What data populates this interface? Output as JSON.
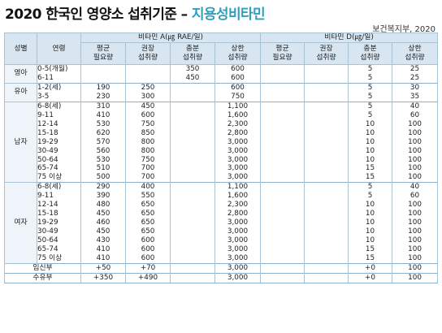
{
  "title": {
    "main": "2020 한국인 영양소 섭취기준",
    "sep": "–",
    "accent": "지용성비타민"
  },
  "source": "보건복지부, 2020",
  "headers": {
    "sex": "성별",
    "age": "연령",
    "vitA": "비타민 A(㎍ RAE/일)",
    "vitD": "비타민 D(㎍/일)",
    "cols": [
      [
        "평균",
        "필요량"
      ],
      [
        "권장",
        "섭취량"
      ],
      [
        "충분",
        "섭취량"
      ],
      [
        "상한",
        "섭취량"
      ],
      [
        "평균",
        "필요량"
      ],
      [
        "권장",
        "섭취량"
      ],
      [
        "충분",
        "섭취량"
      ],
      [
        "상한",
        "섭취량"
      ]
    ]
  },
  "groups": [
    {
      "label": "영아",
      "rows": [
        {
          "age": "0-5(개월)",
          "v": [
            "",
            "",
            "350",
            "600",
            "",
            "",
            "5",
            "25"
          ]
        },
        {
          "age": "6-11",
          "v": [
            "",
            "",
            "450",
            "600",
            "",
            "",
            "5",
            "25"
          ]
        }
      ]
    },
    {
      "label": "유아",
      "rows": [
        {
          "age": "1-2(세)",
          "v": [
            "190",
            "250",
            "",
            "600",
            "",
            "",
            "5",
            "30"
          ]
        },
        {
          "age": "3-5",
          "v": [
            "230",
            "300",
            "",
            "750",
            "",
            "",
            "5",
            "35"
          ]
        }
      ]
    },
    {
      "label": "남자",
      "rows": [
        {
          "age": "6-8(세)",
          "v": [
            "310",
            "450",
            "",
            "1,100",
            "",
            "",
            "5",
            "40"
          ]
        },
        {
          "age": "9-11",
          "v": [
            "410",
            "600",
            "",
            "1,600",
            "",
            "",
            "5",
            "60"
          ]
        },
        {
          "age": "12-14",
          "v": [
            "530",
            "750",
            "",
            "2,300",
            "",
            "",
            "10",
            "100"
          ]
        },
        {
          "age": "15-18",
          "v": [
            "620",
            "850",
            "",
            "2,800",
            "",
            "",
            "10",
            "100"
          ]
        },
        {
          "age": "19-29",
          "v": [
            "570",
            "800",
            "",
            "3,000",
            "",
            "",
            "10",
            "100"
          ]
        },
        {
          "age": "30-49",
          "v": [
            "560",
            "800",
            "",
            "3,000",
            "",
            "",
            "10",
            "100"
          ]
        },
        {
          "age": "50-64",
          "v": [
            "530",
            "750",
            "",
            "3,000",
            "",
            "",
            "10",
            "100"
          ]
        },
        {
          "age": "65-74",
          "v": [
            "510",
            "700",
            "",
            "3,000",
            "",
            "",
            "15",
            "100"
          ]
        },
        {
          "age": "75 이상",
          "v": [
            "500",
            "700",
            "",
            "3,000",
            "",
            "",
            "15",
            "100"
          ]
        }
      ]
    },
    {
      "label": "여자",
      "rows": [
        {
          "age": "6-8(세)",
          "v": [
            "290",
            "400",
            "",
            "1,100",
            "",
            "",
            "5",
            "40"
          ]
        },
        {
          "age": "9-11",
          "v": [
            "390",
            "550",
            "",
            "1,600",
            "",
            "",
            "5",
            "60"
          ]
        },
        {
          "age": "12-14",
          "v": [
            "480",
            "650",
            "",
            "2,300",
            "",
            "",
            "10",
            "100"
          ]
        },
        {
          "age": "15-18",
          "v": [
            "450",
            "650",
            "",
            "2,800",
            "",
            "",
            "10",
            "100"
          ]
        },
        {
          "age": "19-29",
          "v": [
            "460",
            "650",
            "",
            "3,000",
            "",
            "",
            "10",
            "100"
          ]
        },
        {
          "age": "30-49",
          "v": [
            "450",
            "650",
            "",
            "3,000",
            "",
            "",
            "10",
            "100"
          ]
        },
        {
          "age": "50-64",
          "v": [
            "430",
            "600",
            "",
            "3,000",
            "",
            "",
            "10",
            "100"
          ]
        },
        {
          "age": "65-74",
          "v": [
            "410",
            "600",
            "",
            "3,000",
            "",
            "",
            "15",
            "100"
          ]
        },
        {
          "age": "75 이상",
          "v": [
            "410",
            "600",
            "",
            "3,000",
            "",
            "",
            "15",
            "100"
          ]
        }
      ]
    }
  ],
  "special": [
    {
      "age": "임신부",
      "v": [
        "+50",
        "+70",
        "",
        "3,000",
        "",
        "",
        "+0",
        "100"
      ]
    },
    {
      "age": "수유부",
      "v": [
        "+350",
        "+490",
        "",
        "3,000",
        "",
        "",
        "+0",
        "100"
      ]
    }
  ],
  "colors": {
    "accent": "#2e9fbd",
    "header_bg": "#d7e6f1",
    "border": "#a9c3d6"
  }
}
